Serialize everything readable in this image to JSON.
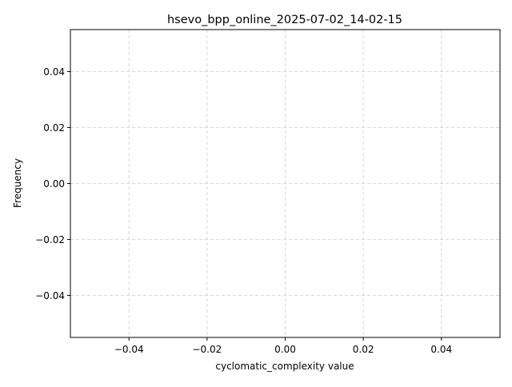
{
  "chart_data": {
    "type": "bar",
    "title": "hsevo_bpp_online_2025-07-02_14-02-15",
    "xlabel": "cyclomatic_complexity value",
    "ylabel": "Frequency",
    "xlim": [
      -0.055,
      0.055
    ],
    "ylim": [
      -0.055,
      0.055
    ],
    "x_ticks": [
      -0.04,
      -0.02,
      0.0,
      0.02,
      0.04
    ],
    "y_ticks": [
      -0.04,
      -0.02,
      0.0,
      0.02,
      0.04
    ],
    "x_tick_labels": [
      "−0.04",
      "−0.02",
      "0.00",
      "0.02",
      "0.04"
    ],
    "y_tick_labels": [
      "−0.04",
      "−0.02",
      "0.00",
      "0.02",
      "0.04"
    ],
    "grid": true,
    "grid_style": "dashed",
    "values": [],
    "colors": {
      "axes": "#000000",
      "grid": "#cccccc",
      "background": "#ffffff"
    }
  }
}
